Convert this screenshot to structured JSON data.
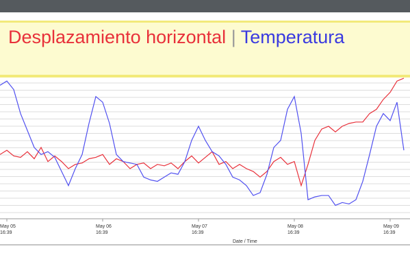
{
  "chart_data": {
    "type": "line",
    "title": "Desplazamiento horizontal",
    "separator": "|",
    "subtitle": "Temperatura",
    "x_label": "Date / Time",
    "categories": [
      null,
      "May 05\n16:39",
      null,
      null,
      null,
      null,
      null,
      null,
      null,
      null,
      null,
      null,
      null,
      null,
      null,
      "May 06\n16:39",
      null,
      null,
      null,
      null,
      null,
      null,
      null,
      null,
      null,
      null,
      null,
      null,
      null,
      "May 07\n16:39",
      null,
      null,
      null,
      null,
      null,
      null,
      null,
      null,
      null,
      null,
      null,
      null,
      null,
      "May 08\n16:39",
      null,
      null,
      null,
      null,
      null,
      null,
      null,
      null,
      null,
      null,
      null,
      null,
      null,
      "May 09\n16:39",
      null,
      null
    ],
    "series": [
      {
        "name": "Desplazamiento horizontal",
        "color": "#e8303a",
        "values": [
          45,
          48,
          44,
          43,
          47,
          42,
          50,
          40,
          44,
          40,
          35,
          38,
          39,
          42,
          43,
          45,
          38,
          42,
          40,
          35,
          38,
          39,
          35,
          38,
          37,
          39,
          35,
          40,
          44,
          39,
          43,
          47,
          38,
          40,
          35,
          38,
          35,
          33,
          29,
          33,
          40,
          43,
          38,
          40,
          23,
          38,
          55,
          63,
          65,
          61,
          65,
          67,
          68,
          68,
          74,
          77,
          84,
          89,
          97,
          99
        ]
      },
      {
        "name": "Temperatura",
        "color": "#5050f0",
        "values": [
          94,
          97,
          91,
          74,
          62,
          50,
          45,
          47,
          43,
          33,
          23,
          35,
          45,
          67,
          86,
          82,
          67,
          45,
          40,
          39,
          38,
          29,
          27,
          26,
          29,
          32,
          31,
          40,
          55,
          65,
          55,
          47,
          44,
          38,
          29,
          27,
          23,
          16,
          18,
          31,
          50,
          55,
          77,
          86,
          60,
          13,
          15,
          16,
          16,
          9,
          11,
          10,
          13,
          26,
          45,
          65,
          74,
          69,
          82,
          48
        ]
      }
    ],
    "ylim": [
      0,
      100
    ],
    "grid": true
  }
}
